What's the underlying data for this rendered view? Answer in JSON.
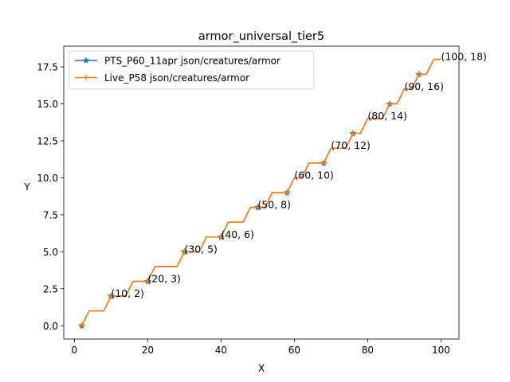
{
  "chart_data": {
    "type": "line",
    "title": "armor_universal_tier5",
    "xlabel": "X",
    "ylabel": "Y",
    "xlim": [
      -2.9,
      104.9
    ],
    "ylim": [
      -0.9,
      18.9
    ],
    "xticks": [
      0,
      20,
      40,
      60,
      80,
      100
    ],
    "yticks": [
      0.0,
      2.5,
      5.0,
      7.5,
      10.0,
      12.5,
      15.0,
      17.5
    ],
    "ytick_labels": [
      "0.0",
      "2.5",
      "5.0",
      "7.5",
      "10.0",
      "12.5",
      "15.0",
      "17.5"
    ],
    "grid": false,
    "legend_position": "top-left",
    "series": [
      {
        "name": "PTS_P60_11apr json/creatures/armor",
        "color": "#1f77b4",
        "marker": "star",
        "x": [
          2,
          4,
          8,
          10,
          12,
          14,
          16,
          20,
          22,
          24,
          26,
          28,
          30,
          32,
          34,
          36,
          38,
          40,
          42,
          44,
          46,
          48,
          50,
          52,
          54,
          56,
          58,
          60,
          62,
          64,
          66,
          68,
          70,
          72,
          74,
          76,
          78,
          80,
          82,
          84,
          86,
          88,
          90,
          92,
          94,
          96,
          98,
          100
        ],
        "y": [
          0,
          1,
          1,
          2,
          2,
          2,
          3,
          3,
          4,
          4,
          4,
          4,
          5,
          5,
          5,
          6,
          6,
          6,
          7,
          7,
          7,
          8,
          8,
          8,
          9,
          9,
          9,
          10,
          10,
          11,
          11,
          11,
          12,
          12,
          12,
          13,
          13,
          14,
          14,
          14,
          15,
          15,
          16,
          16,
          17,
          17,
          18,
          18
        ],
        "marker_x": [
          2,
          10,
          20,
          30,
          40,
          50,
          58,
          68,
          76,
          86,
          94
        ]
      },
      {
        "name": "Live_P58 json/creatures/armor",
        "color": "#ff7f0e",
        "marker": "plus",
        "x": [
          2,
          4,
          8,
          10,
          12,
          14,
          16,
          20,
          22,
          24,
          26,
          28,
          30,
          32,
          34,
          36,
          38,
          40,
          42,
          44,
          46,
          48,
          50,
          52,
          54,
          56,
          58,
          60,
          62,
          64,
          66,
          68,
          70,
          72,
          74,
          76,
          78,
          80,
          82,
          84,
          86,
          88,
          90,
          92,
          94,
          96,
          98,
          100
        ],
        "y": [
          0,
          1,
          1,
          2,
          2,
          2,
          3,
          3,
          4,
          4,
          4,
          4,
          5,
          5,
          5,
          6,
          6,
          6,
          7,
          7,
          7,
          8,
          8,
          8,
          9,
          9,
          9,
          10,
          10,
          11,
          11,
          11,
          12,
          12,
          12,
          13,
          13,
          14,
          14,
          14,
          15,
          15,
          16,
          16,
          17,
          17,
          18,
          18
        ],
        "marker_x": [
          2,
          10,
          20,
          30,
          40,
          50,
          58,
          68,
          76,
          86,
          94
        ]
      }
    ],
    "annotations": [
      {
        "x": 10,
        "y": 2,
        "text": "(10, 2)"
      },
      {
        "x": 20,
        "y": 3,
        "text": "(20, 3)"
      },
      {
        "x": 30,
        "y": 5,
        "text": "(30, 5)"
      },
      {
        "x": 40,
        "y": 6,
        "text": "(40, 6)"
      },
      {
        "x": 50,
        "y": 8,
        "text": "(50, 8)"
      },
      {
        "x": 60,
        "y": 10,
        "text": "(60, 10)"
      },
      {
        "x": 70,
        "y": 12,
        "text": "(70, 12)"
      },
      {
        "x": 80,
        "y": 14,
        "text": "(80, 14)"
      },
      {
        "x": 90,
        "y": 16,
        "text": "(90, 16)"
      },
      {
        "x": 100,
        "y": 18,
        "text": "(100, 18)"
      }
    ]
  }
}
